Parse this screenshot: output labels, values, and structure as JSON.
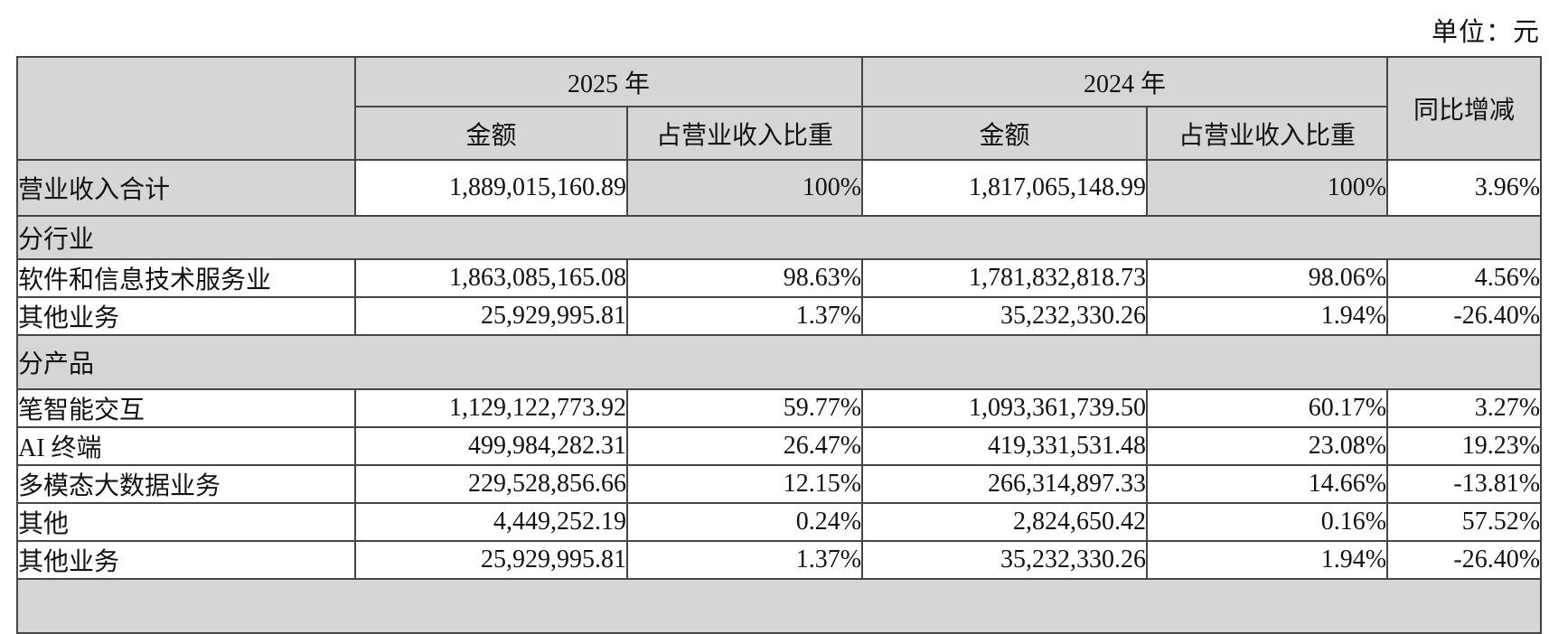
{
  "unit_label": "单位：元",
  "colors": {
    "shaded_background": "#d6d6d6",
    "border": "#454545",
    "page_background": "#ffffff"
  },
  "table": {
    "header": {
      "corner": "",
      "year_2025": "2025 年",
      "year_2024": "2024 年",
      "yoy": "同比增减",
      "amount_2025": "金额",
      "pct_2025": "占营业收入比重",
      "amount_2024": "金额",
      "pct_2024": "占营业收入比重"
    },
    "rows": [
      {
        "type": "data",
        "shaded": true,
        "label": "营业收入合计",
        "amount_2025": "1,889,015,160.89",
        "pct_2025": "100%",
        "amount_2024": "1,817,065,148.99",
        "pct_2024": "100%",
        "yoy": "3.96%"
      },
      {
        "type": "section",
        "label": "分行业"
      },
      {
        "type": "data",
        "shaded": false,
        "label": "软件和信息技术服务业",
        "amount_2025": "1,863,085,165.08",
        "pct_2025": "98.63%",
        "amount_2024": "1,781,832,818.73",
        "pct_2024": "98.06%",
        "yoy": "4.56%"
      },
      {
        "type": "data",
        "shaded": false,
        "label": "其他业务",
        "amount_2025": "25,929,995.81",
        "pct_2025": "1.37%",
        "amount_2024": "35,232,330.26",
        "pct_2024": "1.94%",
        "yoy": "-26.40%"
      },
      {
        "type": "section",
        "label": "分产品"
      },
      {
        "type": "data",
        "shaded": false,
        "label": "笔智能交互",
        "amount_2025": "1,129,122,773.92",
        "pct_2025": "59.77%",
        "amount_2024": "1,093,361,739.50",
        "pct_2024": "60.17%",
        "yoy": "3.27%"
      },
      {
        "type": "data",
        "shaded": false,
        "label": "AI 终端",
        "amount_2025": "499,984,282.31",
        "pct_2025": "26.47%",
        "amount_2024": "419,331,531.48",
        "pct_2024": "23.08%",
        "yoy": "19.23%"
      },
      {
        "type": "data",
        "shaded": false,
        "label": "多模态大数据业务",
        "amount_2025": "229,528,856.66",
        "pct_2025": "12.15%",
        "amount_2024": "266,314,897.33",
        "pct_2024": "14.66%",
        "yoy": "-13.81%"
      },
      {
        "type": "data",
        "shaded": false,
        "label": "其他",
        "amount_2025": "4,449,252.19",
        "pct_2025": "0.24%",
        "amount_2024": "2,824,650.42",
        "pct_2024": "0.16%",
        "yoy": "57.52%"
      },
      {
        "type": "data",
        "shaded": false,
        "label": "其他业务",
        "amount_2025": "25,929,995.81",
        "pct_2025": "1.37%",
        "amount_2024": "35,232,330.26",
        "pct_2024": "1.94%",
        "yoy": "-26.40%"
      },
      {
        "type": "section",
        "label": ""
      }
    ]
  }
}
